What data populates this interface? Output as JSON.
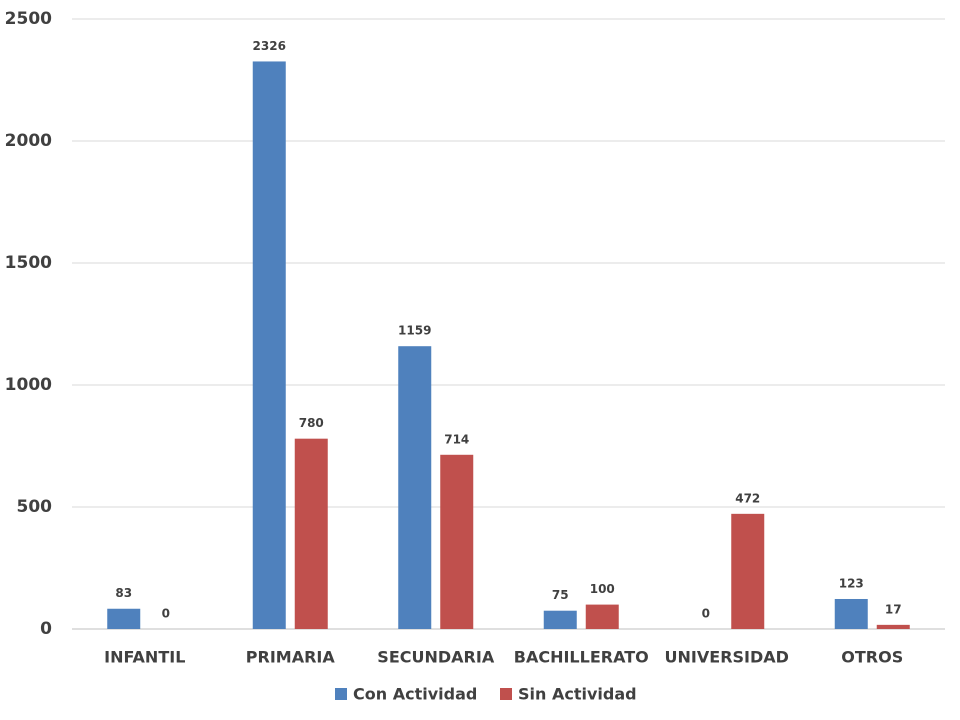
{
  "chart_data": {
    "type": "bar",
    "categories": [
      "INFANTIL",
      "PRIMARIA",
      "SECUNDARIA",
      "BACHILLERATO",
      "UNIVERSIDAD",
      "OTROS"
    ],
    "series": [
      {
        "name": "Con Actividad",
        "color": "#4f81bd",
        "values": [
          83,
          2326,
          1159,
          75,
          0,
          123
        ]
      },
      {
        "name": "Sin Actividad",
        "color": "#c0504d",
        "values": [
          0,
          780,
          714,
          100,
          472,
          17
        ]
      }
    ],
    "ylim": [
      0,
      2500
    ],
    "yticks": [
      0,
      500,
      1000,
      1500,
      2000,
      2500
    ],
    "grid": true,
    "legend": "bottom"
  }
}
